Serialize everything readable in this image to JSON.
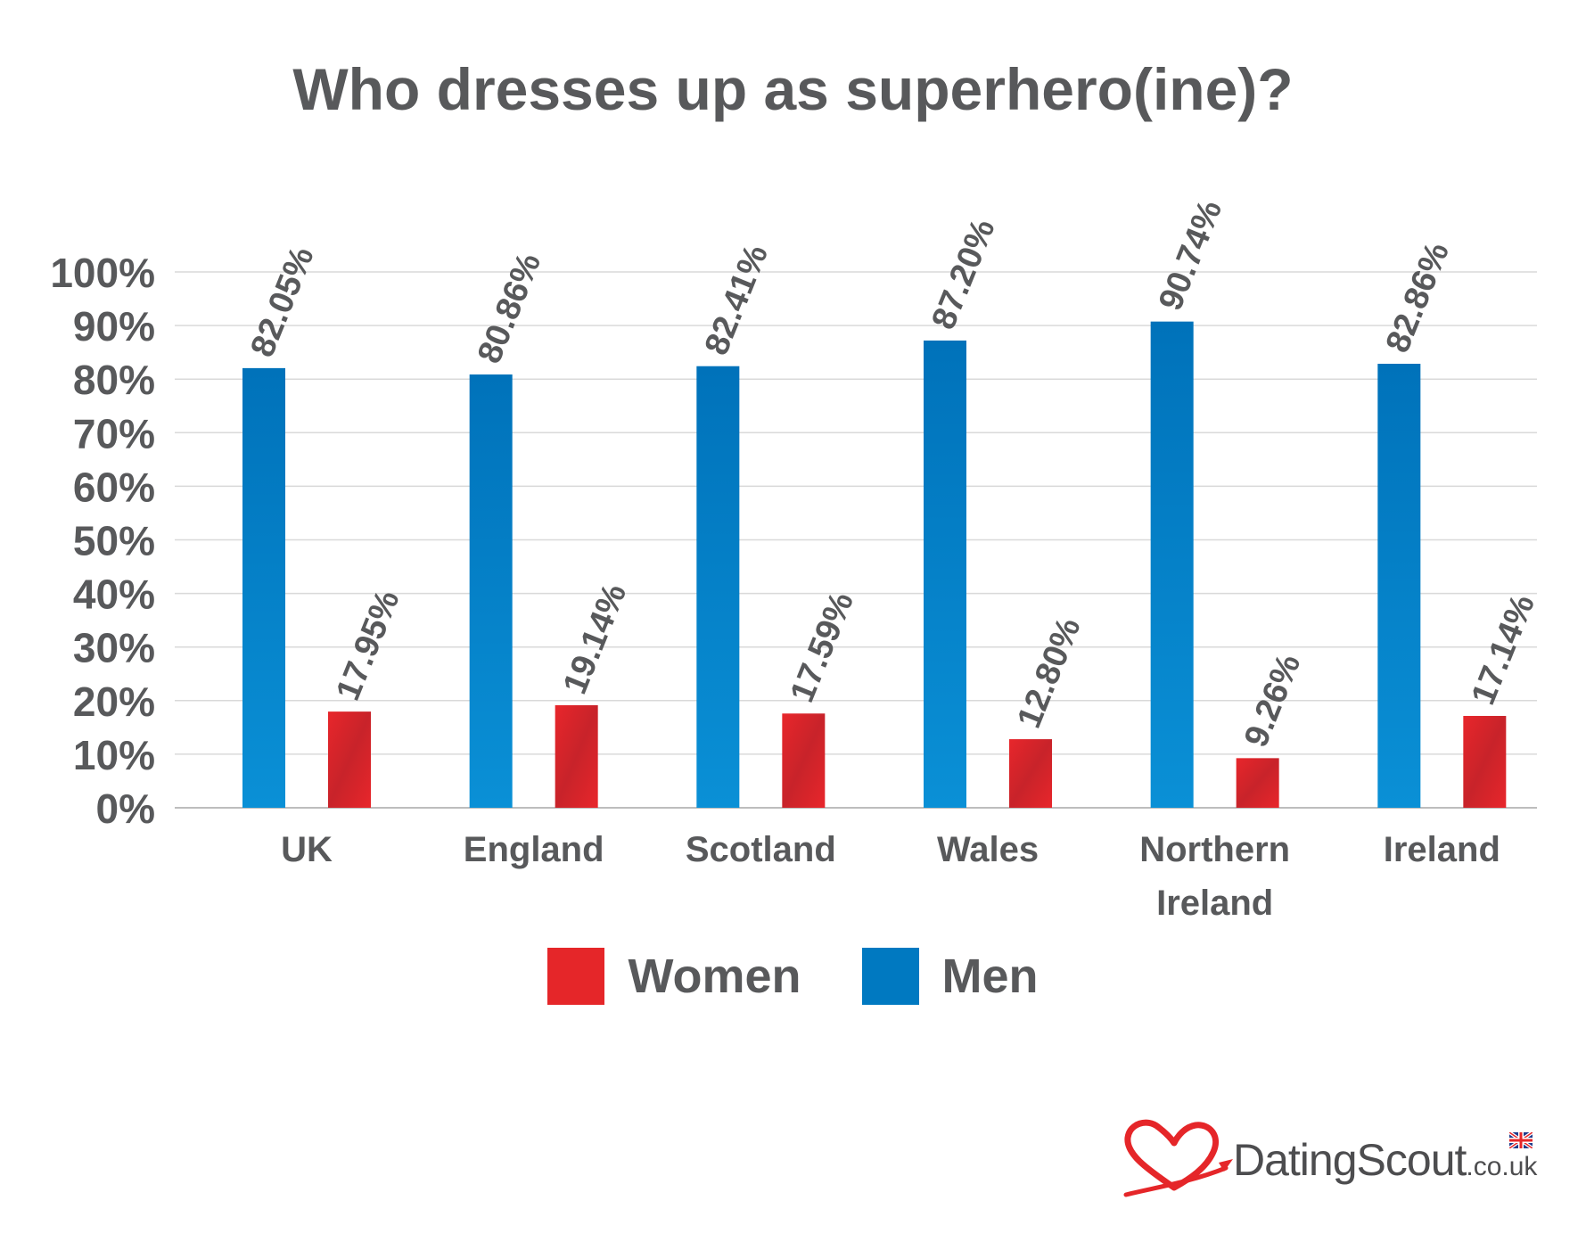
{
  "chart_data": {
    "type": "bar",
    "title": "Who dresses up as superhero(ine)?",
    "xlabel": "",
    "ylabel": "",
    "ylim": [
      0,
      100
    ],
    "y_ticks": [
      "0%",
      "10%",
      "20%",
      "30%",
      "40%",
      "50%",
      "60%",
      "70%",
      "80%",
      "90%",
      "100%"
    ],
    "grid": true,
    "legend_position": "bottom",
    "categories": [
      "UK",
      "England",
      "Scotland",
      "Wales",
      "Northern Ireland",
      "Ireland"
    ],
    "series": [
      {
        "name": "Men",
        "color": "#0079c1",
        "values": [
          82.05,
          80.86,
          82.41,
          87.2,
          90.74,
          82.86
        ],
        "labels": [
          "82.05%",
          "80.86%",
          "82.41%",
          "87.20%",
          "90.74%",
          "82.86%"
        ]
      },
      {
        "name": "Women",
        "color": "#e52629",
        "values": [
          17.95,
          19.14,
          17.59,
          12.8,
          9.26,
          17.14
        ],
        "labels": [
          "17.95%",
          "19.14%",
          "17.59%",
          "12.80%",
          "9.26%",
          "17.14%"
        ]
      }
    ]
  },
  "legend": {
    "women_label": "Women",
    "men_label": "Men",
    "women_color": "#e52629",
    "men_color": "#0079c1"
  },
  "brand": {
    "name": "DatingScout",
    "tld": ".co.uk",
    "logo_color": "#e52629"
  }
}
